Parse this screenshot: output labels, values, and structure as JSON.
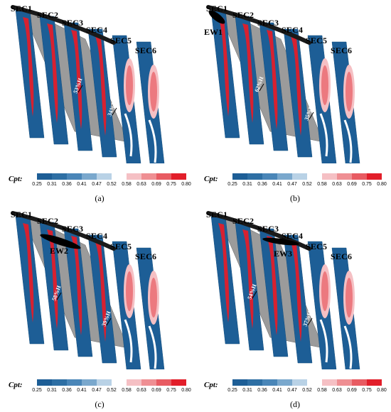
{
  "panels": [
    {
      "caption": "(a)",
      "ew_label": "",
      "ann1": "53%H",
      "ann2": "34%H"
    },
    {
      "caption": "(b)",
      "ew_label": "EW1",
      "ann1": "62%H",
      "ann2": "35%H"
    },
    {
      "caption": "(c)",
      "ew_label": "EW2",
      "ann1": "58%H",
      "ann2": "39%H"
    },
    {
      "caption": "(d)",
      "ew_label": "EW3",
      "ann1": "54%H",
      "ann2": "37%H"
    }
  ],
  "section_labels": [
    "SEC1",
    "SEC2",
    "SEC3",
    "SEC4",
    "SEC5",
    "SEC6"
  ],
  "colorbar": {
    "label": "Cpt:",
    "ticks": [
      "0.25",
      "0.31",
      "0.36",
      "0.41",
      "0.47",
      "0.52",
      "0.58",
      "0.63",
      "0.69",
      "0.75",
      "0.80"
    ],
    "colors": [
      "#1d5e96",
      "#2e6fa4",
      "#4a86b8",
      "#7aa8cd",
      "#b9d2e6",
      "#ffffff",
      "#f5c0c4",
      "#ef8f93",
      "#e85b62",
      "#e21e2a"
    ]
  }
}
